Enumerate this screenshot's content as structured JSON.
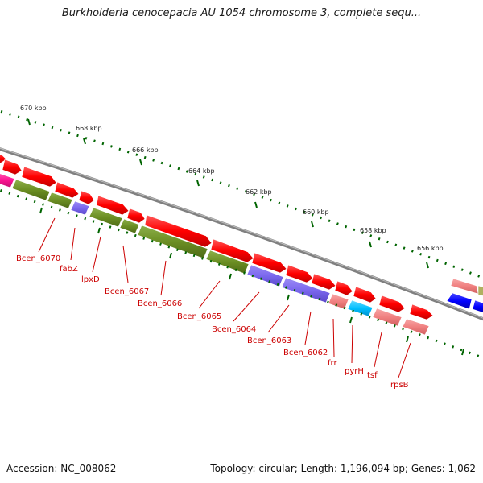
{
  "title": "Burkholderia cenocepacia AU 1054 chromosome 3, complete sequ...",
  "accession": "Accession: NC_008062",
  "summary": "Topology: circular; Length: 1,196,094 bp; Genes: 1,062",
  "ruler_labels": [
    "670 kbp",
    "668 kbp",
    "666 kbp",
    "664 kbp",
    "662 kbp",
    "660 kbp",
    "658 kbp",
    "656 kbp"
  ],
  "gene_labels": [
    "Bcen_6070",
    "fabZ",
    "lpxD",
    "Bcen_6067",
    "Bcen_6066",
    "Bcen_6065",
    "Bcen_6064",
    "Bcen_6063",
    "Bcen_6062",
    "frr",
    "pyrH",
    "tsf",
    "rpsB"
  ],
  "colors": {
    "cds": "#ff0000",
    "gene_olive": "#6b8e23",
    "gene_purple": "#7b68ee",
    "gene_pink": "#f08080",
    "gene_cyan": "#00bfff",
    "gene_blue": "#0000ff",
    "gene_magenta": "#ff1493",
    "backbone": "#808080",
    "ticks": "#006400"
  }
}
